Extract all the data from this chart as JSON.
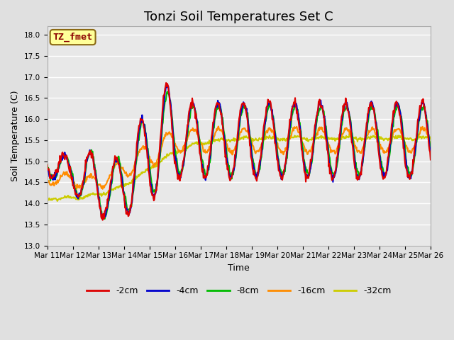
{
  "title": "Tonzi Soil Temperatures Set C",
  "xlabel": "Time",
  "ylabel": "Soil Temperature (C)",
  "ylim": [
    13.0,
    18.2
  ],
  "yticks": [
    13.0,
    13.5,
    14.0,
    14.5,
    15.0,
    15.5,
    16.0,
    16.5,
    17.0,
    17.5,
    18.0
  ],
  "xtick_labels": [
    "Mar 11",
    "Mar 12",
    "Mar 13",
    "Mar 14",
    "Mar 15",
    "Mar 16",
    "Mar 17",
    "Mar 18",
    "Mar 19",
    "Mar 20",
    "Mar 21",
    "Mar 22",
    "Mar 23",
    "Mar 24",
    "Mar 25",
    "Mar 26"
  ],
  "annotation_text": "TZ_fmet",
  "annotation_color": "#8B0000",
  "annotation_bg": "#FFFF99",
  "annotation_border": "#8B6914",
  "series_colors": [
    "#DD0000",
    "#0000CC",
    "#00BB00",
    "#FF8C00",
    "#CCCC00"
  ],
  "series_labels": [
    "-2cm",
    "-4cm",
    "-8cm",
    "-16cm",
    "-32cm"
  ],
  "series_linewidths": [
    1.5,
    1.5,
    1.5,
    1.5,
    1.5
  ],
  "bg_color": "#E0E0E0",
  "plot_bg_color": "#E8E8E8",
  "grid_color": "#FFFFFF",
  "title_fontsize": 13,
  "axis_fontsize": 9,
  "tick_fontsize": 7.5,
  "legend_fontsize": 9
}
